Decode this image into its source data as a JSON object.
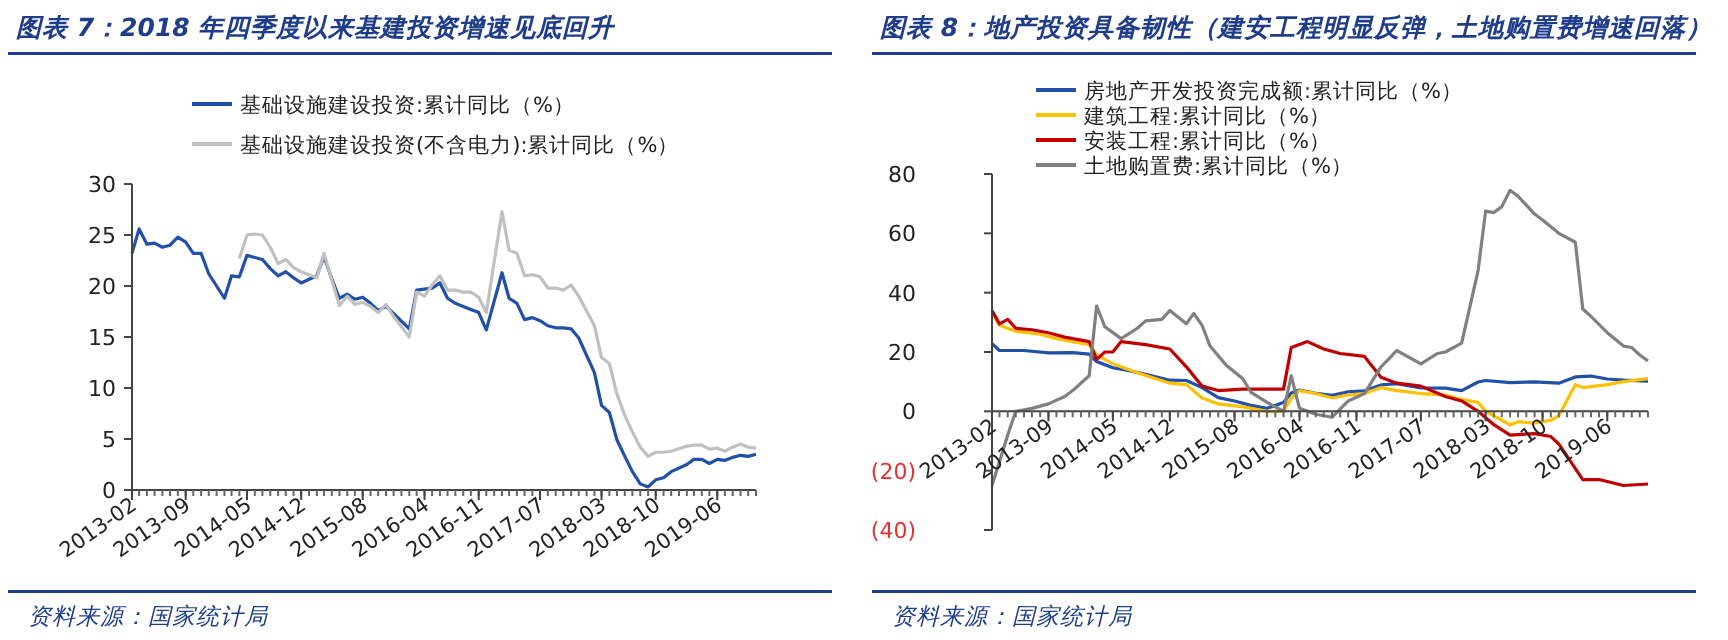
{
  "chart_data": [
    {
      "type": "line",
      "title": "图表 7：2018 年四季度以来基建投资增速见底回升",
      "annotations": [
        "资料来源：国家统计局"
      ],
      "legend": "top",
      "grid": false,
      "line_style": "solid",
      "xlim": [
        "2013-02",
        "2019-11"
      ],
      "xticks": [
        "2013-02",
        "2013-09",
        "2014-05",
        "2014-12",
        "2015-08",
        "2016-04",
        "2016-11",
        "2017-07",
        "2018-03",
        "2018-10",
        "2019-06"
      ],
      "ylim": [
        0,
        30
      ],
      "yticks": [
        0,
        5,
        10,
        15,
        20,
        25,
        30
      ],
      "series": [
        {
          "name": "基础设施建设投资:累计同比（%）",
          "color": "#2150a8",
          "x": [
            "2013-02",
            "2013-03",
            "2013-04",
            "2013-05",
            "2013-06",
            "2013-07",
            "2013-08",
            "2013-09",
            "2013-10",
            "2013-11",
            "2013-12",
            "2014-02",
            "2014-03",
            "2014-04",
            "2014-05",
            "2014-06",
            "2014-07",
            "2014-08",
            "2014-09",
            "2014-10",
            "2014-11",
            "2014-12",
            "2015-02",
            "2015-03",
            "2015-04",
            "2015-05",
            "2015-06",
            "2015-07",
            "2015-08",
            "2015-09",
            "2015-10",
            "2015-11",
            "2015-12",
            "2016-02",
            "2016-03",
            "2016-04",
            "2016-05",
            "2016-06",
            "2016-07",
            "2016-08",
            "2016-09",
            "2016-10",
            "2016-11",
            "2016-12",
            "2017-02",
            "2017-03",
            "2017-04",
            "2017-05",
            "2017-06",
            "2017-07",
            "2017-08",
            "2017-09",
            "2017-10",
            "2017-11",
            "2017-12",
            "2018-02",
            "2018-03",
            "2018-04",
            "2018-05",
            "2018-06",
            "2018-07",
            "2018-08",
            "2018-09",
            "2018-10",
            "2018-11",
            "2018-12",
            "2019-02",
            "2019-03",
            "2019-04",
            "2019-05",
            "2019-06",
            "2019-07",
            "2019-08",
            "2019-09",
            "2019-10",
            "2019-11"
          ],
          "values": [
            23.2,
            25.6,
            24.1,
            24.2,
            23.8,
            24.0,
            24.8,
            24.3,
            23.2,
            23.2,
            21.2,
            18.8,
            21.0,
            20.9,
            23.0,
            22.8,
            22.6,
            21.7,
            21.0,
            21.4,
            20.8,
            20.3,
            21.0,
            22.9,
            20.7,
            18.8,
            19.2,
            18.7,
            18.9,
            18.3,
            17.6,
            18.0,
            17.3,
            15.8,
            19.6,
            19.7,
            19.8,
            20.3,
            18.8,
            18.3,
            18.0,
            17.7,
            17.4,
            15.7,
            21.3,
            18.8,
            18.3,
            16.7,
            16.9,
            16.6,
            16.1,
            15.9,
            15.9,
            15.8,
            14.9,
            11.5,
            8.3,
            7.6,
            4.9,
            3.3,
            1.8,
            0.6,
            0.3,
            1.0,
            1.2,
            1.8,
            2.5,
            3.0,
            3.0,
            2.6,
            3.0,
            2.9,
            3.2,
            3.4,
            3.3,
            3.5
          ]
        },
        {
          "name": "基础设施建设投资(不含电力):累计同比（%）",
          "color": "#c0c0c0",
          "x": [
            "2014-04",
            "2014-05",
            "2014-06",
            "2014-07",
            "2014-08",
            "2014-09",
            "2014-10",
            "2014-11",
            "2014-12",
            "2015-02",
            "2015-03",
            "2015-04",
            "2015-05",
            "2015-06",
            "2015-07",
            "2015-08",
            "2015-09",
            "2015-10",
            "2015-11",
            "2015-12",
            "2016-02",
            "2016-03",
            "2016-04",
            "2016-05",
            "2016-06",
            "2016-07",
            "2016-08",
            "2016-09",
            "2016-10",
            "2016-11",
            "2016-12",
            "2017-02",
            "2017-03",
            "2017-04",
            "2017-05",
            "2017-06",
            "2017-07",
            "2017-08",
            "2017-09",
            "2017-10",
            "2017-11",
            "2017-12",
            "2018-02",
            "2018-03",
            "2018-04",
            "2018-05",
            "2018-06",
            "2018-07",
            "2018-08",
            "2018-09",
            "2018-10",
            "2018-11",
            "2018-12",
            "2019-02",
            "2019-03",
            "2019-04",
            "2019-05",
            "2019-06",
            "2019-07",
            "2019-08",
            "2019-09",
            "2019-10",
            "2019-11"
          ],
          "values": [
            22.7,
            25.0,
            25.1,
            25.0,
            23.8,
            22.2,
            22.6,
            21.8,
            21.4,
            20.8,
            23.2,
            20.6,
            18.1,
            19.0,
            18.2,
            18.4,
            18.0,
            17.4,
            18.2,
            17.0,
            15.0,
            19.4,
            19.0,
            20.1,
            21.0,
            19.6,
            19.6,
            19.4,
            19.4,
            18.9,
            17.4,
            27.3,
            23.5,
            23.2,
            21.0,
            21.1,
            20.9,
            19.8,
            19.8,
            19.6,
            20.1,
            19.0,
            16.1,
            13.0,
            12.4,
            9.4,
            7.3,
            5.7,
            4.2,
            3.3,
            3.7,
            3.7,
            3.8,
            4.3,
            4.4,
            4.4,
            4.0,
            4.1,
            3.8,
            4.2,
            4.5,
            4.2,
            4.1
          ]
        }
      ]
    },
    {
      "type": "line",
      "title": "图表 8：地产投资具备韧性（建安工程明显反弹，土地购置费增速回落）",
      "annotations": [
        "资料来源：国家统计局"
      ],
      "legend": "top",
      "grid": false,
      "line_style": "solid",
      "xlim": [
        "2013-02",
        "2019-11"
      ],
      "xticks": [
        "2013-02",
        "2013-09",
        "2014-05",
        "2014-12",
        "2015-08",
        "2016-04",
        "2016-11",
        "2017-07",
        "2018-03",
        "2018-10",
        "2019-06"
      ],
      "ylim": [
        -40,
        80
      ],
      "yticks": [
        {
          "value": -40,
          "label": "(40)"
        },
        {
          "value": -20,
          "label": "(20)"
        },
        0,
        20,
        40,
        60,
        80
      ],
      "series": [
        {
          "name": "房地产开发投资完成额:累计同比（%）",
          "color": "#2150a8",
          "x": [
            "2013-02",
            "2013-03",
            "2013-06",
            "2013-09",
            "2013-12",
            "2014-02",
            "2014-03",
            "2014-05",
            "2014-07",
            "2014-09",
            "2014-12",
            "2015-02",
            "2015-04",
            "2015-06",
            "2015-08",
            "2015-10",
            "2015-12",
            "2016-02",
            "2016-03",
            "2016-04",
            "2016-06",
            "2016-08",
            "2016-10",
            "2016-12",
            "2017-02",
            "2017-04",
            "2017-07",
            "2017-10",
            "2017-12",
            "2018-02",
            "2018-03",
            "2018-06",
            "2018-09",
            "2018-12",
            "2019-02",
            "2019-04",
            "2019-06",
            "2019-08",
            "2019-11"
          ],
          "values": [
            22.8,
            20.5,
            20.5,
            19.7,
            19.8,
            19.3,
            16.8,
            14.7,
            13.7,
            12.5,
            10.5,
            10.4,
            8.0,
            4.6,
            3.5,
            2.0,
            1.0,
            3.0,
            6.2,
            7.2,
            6.1,
            5.4,
            6.6,
            6.9,
            8.9,
            9.3,
            7.9,
            7.8,
            7.0,
            9.9,
            10.4,
            9.7,
            9.9,
            9.5,
            11.6,
            11.9,
            10.9,
            10.5,
            10.2
          ]
        },
        {
          "name": "建筑工程:累计同比（%）",
          "color": "#ffc000",
          "x": [
            "2013-02",
            "2013-03",
            "2013-05",
            "2013-08",
            "2013-10",
            "2014-02",
            "2014-03",
            "2014-05",
            "2014-08",
            "2014-12",
            "2015-02",
            "2015-04",
            "2015-06",
            "2015-09",
            "2015-12",
            "2016-02",
            "2016-03",
            "2016-04",
            "2016-06",
            "2016-08",
            "2016-10",
            "2016-12",
            "2017-02",
            "2017-04",
            "2017-07",
            "2017-10",
            "2017-12",
            "2018-02",
            "2018-03",
            "2018-05",
            "2018-06",
            "2018-07",
            "2018-09",
            "2018-11",
            "2018-12",
            "2019-02",
            "2019-03",
            "2019-06",
            "2019-08",
            "2019-11"
          ],
          "values": [
            33,
            29,
            27,
            26,
            24.5,
            22.5,
            19,
            16,
            13,
            9.5,
            9,
            4.5,
            2.5,
            1.5,
            0,
            0,
            4.5,
            7,
            6,
            4.5,
            5.5,
            6,
            8,
            7,
            6,
            5.5,
            4,
            3,
            0,
            -3,
            -4.6,
            -3.5,
            -4,
            -3,
            -1.5,
            9,
            8,
            9,
            10,
            11
          ]
        },
        {
          "name": "安装工程:累计同比（%）",
          "color": "#c00000",
          "x": [
            "2013-02",
            "2013-03",
            "2013-04",
            "2013-05",
            "2013-07",
            "2013-09",
            "2013-11",
            "2014-02",
            "2014-03",
            "2014-04",
            "2014-05",
            "2014-06",
            "2014-09",
            "2014-12",
            "2015-02",
            "2015-04",
            "2015-06",
            "2015-09",
            "2016-02",
            "2016-03",
            "2016-05",
            "2016-07",
            "2016-09",
            "2016-12",
            "2017-02",
            "2017-04",
            "2017-07",
            "2017-10",
            "2017-12",
            "2018-02",
            "2018-04",
            "2018-06",
            "2018-09",
            "2018-11",
            "2018-12",
            "2019-03",
            "2019-05",
            "2019-08",
            "2019-11"
          ],
          "values": [
            34,
            29.5,
            31,
            28,
            27.5,
            26.5,
            25,
            23.5,
            17.5,
            20,
            20,
            23.5,
            22.5,
            21,
            15,
            8.5,
            7,
            7.5,
            7.5,
            21.5,
            23.5,
            21,
            19.5,
            18.5,
            11.5,
            9.5,
            8.5,
            5,
            3.5,
            0,
            -4.5,
            -8,
            -7.5,
            -8.5,
            -11,
            -23,
            -23,
            -25,
            -24.5
          ]
        },
        {
          "name": "土地购置费:累计同比（%）",
          "color": "#808080",
          "x": [
            "2013-02",
            "2013-03",
            "2013-04",
            "2013-05",
            "2013-07",
            "2013-09",
            "2013-11",
            "2013-12",
            "2014-02",
            "2014-03",
            "2014-04",
            "2014-06",
            "2014-08",
            "2014-09",
            "2014-11",
            "2014-12",
            "2015-02",
            "2015-03",
            "2015-04",
            "2015-05",
            "2015-07",
            "2015-09",
            "2015-10",
            "2015-12",
            "2016-02",
            "2016-03",
            "2016-04",
            "2016-06",
            "2016-08",
            "2016-10",
            "2016-12",
            "2017-02",
            "2017-03",
            "2017-04",
            "2017-07",
            "2017-09",
            "2017-10",
            "2017-12",
            "2018-02",
            "2018-03",
            "2018-04",
            "2018-05",
            "2018-06",
            "2018-07",
            "2018-09",
            "2018-10",
            "2018-12",
            "2019-02",
            "2019-03",
            "2019-04",
            "2019-06",
            "2019-08",
            "2019-09",
            "2019-10",
            "2019-11"
          ],
          "values": [
            -25,
            -17,
            -8,
            0,
            1,
            2.5,
            5,
            7,
            12,
            35.5,
            28.5,
            24.5,
            28,
            30.5,
            31,
            34,
            29.5,
            33,
            29,
            22,
            15.5,
            11,
            6.5,
            3,
            0,
            12,
            1,
            -1,
            -2,
            3.5,
            6,
            15,
            17.5,
            20.5,
            16,
            19.5,
            20,
            23,
            47.5,
            67.5,
            67,
            69,
            74.5,
            72.5,
            66.5,
            64.5,
            60,
            57,
            34.5,
            32,
            26.5,
            22,
            21.5,
            19,
            17
          ]
        }
      ]
    }
  ]
}
